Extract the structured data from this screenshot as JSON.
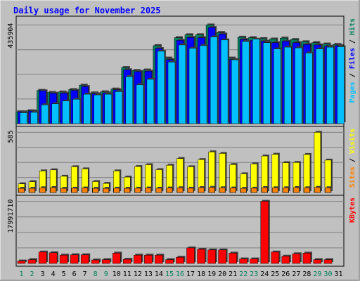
{
  "chart_data": {
    "type": "bar",
    "title": "Daily usage for November 2025",
    "days": [
      "1",
      "2",
      "3",
      "4",
      "5",
      "6",
      "7",
      "8",
      "9",
      "10",
      "11",
      "12",
      "13",
      "14",
      "15",
      "16",
      "17",
      "18",
      "19",
      "20",
      "21",
      "22",
      "23",
      "24",
      "25",
      "26",
      "27",
      "28",
      "29",
      "30",
      "31"
    ],
    "weekend_days": [
      "1",
      "2",
      "8",
      "9",
      "15",
      "16",
      "22",
      "23",
      "29",
      "30"
    ],
    "colors": {
      "hits": "#00805C",
      "files": "#0000FF",
      "pages": "#00C0FF",
      "visits": "#FFFF00",
      "sites": "#FF8000",
      "kbytes": "#FF0000",
      "weekday": "#000000",
      "weekend": "#00805C",
      "title": "#0000FF"
    },
    "panels": [
      {
        "name": "hits-files-pages",
        "max_label": "435904",
        "ymax": 435904,
        "legend": [
          {
            "text": "Pages",
            "color": "#00C0FF"
          },
          {
            "text": " / ",
            "color": "#000000"
          },
          {
            "text": "Files",
            "color": "#0000FF"
          },
          {
            "text": " / ",
            "color": "#000000"
          },
          {
            "text": "Hits",
            "color": "#00805C"
          }
        ],
        "series": [
          {
            "name": "Hits",
            "color": "#00805C",
            "values": [
              52000,
              57000,
              147000,
              138000,
              140000,
              151000,
              170000,
              136000,
              141000,
              153000,
              248000,
              235000,
              237000,
              345000,
              290000,
              380000,
              393000,
              393000,
              436000,
              403000,
              290000,
              382000,
              380000,
              376000,
              374000,
              378000,
              372000,
              362000,
              358000,
              352000,
              350000
            ]
          },
          {
            "name": "Files",
            "color": "#0000FF",
            "values": [
              52000,
              56000,
              145000,
              134000,
              135000,
              147000,
              164000,
              132000,
              136000,
              150000,
              238000,
              230000,
              232000,
              332000,
              283000,
              368000,
              381000,
              380000,
              425000,
              396000,
              283000,
              372000,
              368000,
              364000,
              358000,
              364000,
              358000,
              350000,
              348000,
              342000,
              345000
            ]
          },
          {
            "name": "Pages",
            "color": "#00C0FF",
            "values": [
              48000,
              50000,
              83000,
              88000,
              100000,
              108000,
              130000,
              127000,
              130000,
              142000,
              208000,
              172000,
              196000,
              320000,
              272000,
              348000,
              333000,
              345000,
              383000,
              370000,
              282000,
              363000,
              373000,
              358000,
              330000,
              338000,
              335000,
              312000,
              330000,
              338000,
              340000
            ]
          }
        ]
      },
      {
        "name": "visits-sites",
        "max_label": "585",
        "ymax": 585,
        "legend": [
          {
            "text": "Sites",
            "color": "#FF8000"
          },
          {
            "text": " / ",
            "color": "#000000"
          },
          {
            "text": "Visits",
            "color": "#FFFF00"
          }
        ],
        "series": [
          {
            "name": "Visits",
            "color": "#FFFF00",
            "values": [
              84,
              105,
              210,
              220,
              158,
              250,
              230,
              106,
              88,
              210,
              150,
              252,
              270,
              222,
              265,
              330,
              250,
              320,
              395,
              380,
              272,
              182,
              278,
              355,
              372,
              290,
              292,
              370,
              585,
              315,
              0
            ]
          },
          {
            "name": "Sites",
            "color": "#FF8000",
            "values": [
              40,
              40,
              46,
              48,
              40,
              42,
              44,
              40,
              40,
              42,
              40,
              42,
              44,
              42,
              44,
              46,
              42,
              48,
              50,
              46,
              44,
              40,
              42,
              48,
              46,
              46,
              48,
              46,
              50,
              46,
              0
            ]
          }
        ]
      },
      {
        "name": "kbytes",
        "max_label": "17991710",
        "ymax": 17991710,
        "legend": [
          {
            "text": "KBytes",
            "color": "#FF0000"
          }
        ],
        "series": [
          {
            "name": "KBytes",
            "color": "#FF0000",
            "values": [
              700000,
              1100000,
              3300000,
              3100000,
              2400000,
              2500000,
              2500000,
              1000000,
              1100000,
              3000000,
              1200000,
              2400000,
              2400000,
              2400000,
              1100000,
              1800000,
              4500000,
              4100000,
              3900000,
              3900000,
              3000000,
              1300000,
              1300000,
              17991710,
              3300000,
              2100000,
              2800000,
              3000000,
              1100000,
              1100000,
              0
            ]
          }
        ]
      }
    ]
  }
}
